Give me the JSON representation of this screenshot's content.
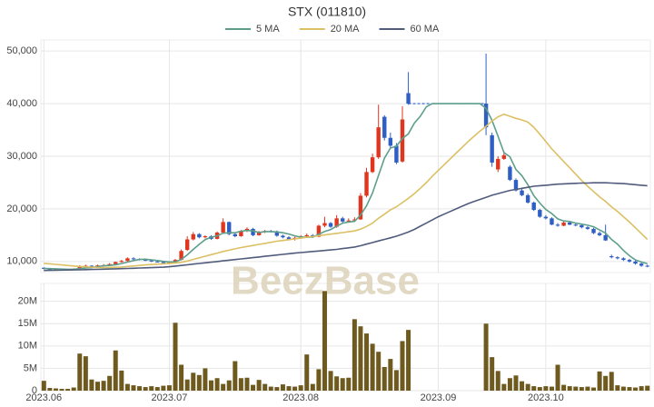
{
  "chart_data": [
    {
      "type": "candlestick",
      "title": "STX (011810)",
      "watermark": "BeezBase",
      "up_color": "#e0361f",
      "down_color": "#2f5fc4",
      "grid": true,
      "ylim": [
        7900,
        52100
      ],
      "yticks": [
        {
          "value": 10000,
          "label": "10,000"
        },
        {
          "value": 20000,
          "label": "20,000"
        },
        {
          "value": 30000,
          "label": "30,000"
        },
        {
          "value": 40000,
          "label": "40,000"
        },
        {
          "value": 50000,
          "label": "50,000"
        }
      ],
      "open": [
        8800,
        8600,
        8500,
        8550,
        8500,
        8450,
        8600,
        9100,
        9200,
        9000,
        9250,
        9300,
        9500,
        9900,
        10100,
        10600,
        10500,
        10300,
        10200,
        10000,
        9900,
        9700,
        9800,
        10300,
        12200,
        14200,
        15200,
        14600,
        14800,
        14300,
        15500,
        17500,
        15200,
        14800,
        15800,
        16200,
        15000,
        15600,
        15800,
        15700,
        14900,
        14600,
        14200,
        14500,
        14800,
        15000,
        14700,
        16800,
        17300,
        16600,
        18200,
        17600,
        17800,
        18000,
        22500,
        27000,
        29800,
        37500,
        33500,
        32000,
        29000,
        42000,
        null,
        null,
        null,
        null,
        null,
        null,
        null,
        null,
        null,
        null,
        null,
        null,
        40000,
        34000,
        27500,
        29500,
        28000,
        25500,
        23500,
        22600,
        21200,
        19800,
        18500,
        18200,
        17000,
        16800,
        17400,
        17000,
        16900,
        16500,
        16200,
        15400,
        15000,
        11000,
        10800,
        10600,
        10300,
        10000,
        9600,
        9200
      ],
      "high": [
        8900,
        8700,
        8650,
        8650,
        8600,
        8700,
        9300,
        9400,
        9300,
        9400,
        9500,
        9700,
        10000,
        10300,
        10800,
        10800,
        10600,
        10500,
        10300,
        10100,
        10000,
        9900,
        10500,
        12300,
        14800,
        15600,
        15400,
        15000,
        15000,
        15700,
        18200,
        17600,
        15500,
        16000,
        16500,
        16400,
        15800,
        16000,
        16000,
        15900,
        15100,
        14800,
        14700,
        15000,
        15300,
        15200,
        17000,
        18500,
        17500,
        18800,
        18500,
        18200,
        18400,
        23000,
        27800,
        30500,
        39800,
        37800,
        34500,
        32500,
        39500,
        46000,
        null,
        null,
        null,
        null,
        null,
        null,
        null,
        null,
        null,
        null,
        null,
        null,
        49500,
        34500,
        30000,
        30800,
        28300,
        25800,
        23800,
        22900,
        21400,
        20000,
        18800,
        18400,
        17300,
        17700,
        17600,
        17300,
        17100,
        16700,
        16400,
        15700,
        17000,
        11300,
        11000,
        10800,
        10500,
        10200,
        9800,
        9400
      ],
      "low": [
        8500,
        8400,
        8400,
        8400,
        8350,
        8400,
        8500,
        9000,
        8900,
        8950,
        9150,
        9200,
        9400,
        9800,
        10000,
        10300,
        10200,
        10100,
        9900,
        9800,
        9600,
        9600,
        9700,
        10200,
        12000,
        14000,
        14400,
        14400,
        14100,
        14200,
        15300,
        15000,
        14600,
        14700,
        15600,
        14800,
        14900,
        15400,
        15500,
        14700,
        14400,
        14000,
        14000,
        14300,
        14600,
        14500,
        14600,
        16500,
        16400,
        16400,
        17400,
        17400,
        17500,
        17900,
        22200,
        26800,
        29500,
        33000,
        31500,
        28500,
        28800,
        39800,
        null,
        null,
        null,
        null,
        null,
        null,
        null,
        null,
        null,
        null,
        null,
        null,
        34000,
        28000,
        27000,
        29300,
        25300,
        23300,
        22400,
        21000,
        19600,
        18300,
        18000,
        16900,
        16600,
        16700,
        16900,
        16700,
        16300,
        16000,
        15200,
        14800,
        13900,
        10600,
        10400,
        10100,
        9800,
        9400,
        9000,
        8900
      ],
      "close": [
        8600,
        8500,
        8550,
        8500,
        8450,
        8600,
        9100,
        9200,
        9000,
        9250,
        9300,
        9500,
        9900,
        10100,
        10600,
        10500,
        10300,
        10200,
        10000,
        9900,
        9700,
        9800,
        10300,
        12000,
        14200,
        15200,
        14600,
        14800,
        14300,
        15500,
        17500,
        15200,
        14800,
        15800,
        16200,
        15000,
        15600,
        15800,
        15700,
        14900,
        14600,
        14200,
        14500,
        14800,
        15000,
        14700,
        16800,
        17300,
        16600,
        18200,
        17600,
        17800,
        18000,
        22500,
        27000,
        29800,
        35500,
        33500,
        32000,
        28800,
        37000,
        40000,
        null,
        null,
        null,
        null,
        null,
        null,
        null,
        null,
        null,
        null,
        null,
        null,
        35500,
        28800,
        29500,
        30200,
        25500,
        23500,
        22600,
        21200,
        19800,
        18500,
        18200,
        17000,
        16800,
        17400,
        17000,
        16900,
        16500,
        16200,
        15400,
        15000,
        14000,
        10800,
        10600,
        10300,
        10000,
        9600,
        9200,
        9100
      ],
      "series": [
        {
          "name": "5 MA",
          "color": "#5d9f8c",
          "values": [
            8700,
            8650,
            8600,
            8550,
            8520,
            8520,
            8640,
            8770,
            8870,
            9010,
            9170,
            9250,
            9390,
            9610,
            9890,
            10180,
            10380,
            10440,
            10320,
            10180,
            10020,
            9920,
            9940,
            10400,
            11260,
            12300,
            13260,
            14160,
            14620,
            14880,
            15380,
            15460,
            15460,
            15760,
            15900,
            15800,
            15520,
            15680,
            15680,
            15620,
            15460,
            15220,
            14880,
            14640,
            14620,
            14640,
            15160,
            15720,
            16080,
            16720,
            17300,
            17500,
            17640,
            18820,
            20580,
            23000,
            26360,
            29660,
            31560,
            31920,
            33360,
            34260,
            36300,
            37600,
            39400,
            40000,
            40000,
            40000,
            40000,
            40000,
            40000,
            40000,
            40000,
            40000,
            39100,
            36800,
            33800,
            30700,
            29900,
            27500,
            26300,
            24600,
            22500,
            21100,
            19900,
            19100,
            18100,
            17700,
            17600,
            17300,
            17100,
            16900,
            16600,
            16000,
            15400,
            14200,
            13300,
            12100,
            11100,
            10300,
            9900,
            9600
          ]
        },
        {
          "name": "20 MA",
          "color": "#dcc064",
          "values": [
            9650,
            9550,
            9450,
            9350,
            9250,
            9150,
            9050,
            8980,
            8920,
            8860,
            8850,
            8860,
            8900,
            8960,
            9050,
            9150,
            9250,
            9350,
            9420,
            9490,
            9550,
            9620,
            9700,
            9850,
            10100,
            10400,
            10700,
            11000,
            11300,
            11600,
            11900,
            12150,
            12400,
            12650,
            12850,
            13050,
            13250,
            13450,
            13650,
            13850,
            14000,
            14150,
            14300,
            14450,
            14600,
            14750,
            14900,
            15050,
            15200,
            15350,
            15500,
            15650,
            15800,
            16150,
            16650,
            17300,
            18200,
            19000,
            19800,
            20400,
            21200,
            22000,
            22900,
            23900,
            25000,
            26200,
            27300,
            28400,
            29500,
            30600,
            31700,
            32800,
            33800,
            34800,
            35700,
            36700,
            37500,
            38000,
            37600,
            37200,
            36900,
            36500,
            35500,
            34200,
            32800,
            31400,
            30200,
            29000,
            27800,
            26600,
            25400,
            24300,
            23300,
            22300,
            21400,
            20400,
            19500,
            18500,
            17500,
            16400,
            15300,
            14200
          ]
        },
        {
          "name": "60 MA",
          "color": "#515c7c",
          "values": [
            8300,
            8320,
            8340,
            8360,
            8380,
            8400,
            8420,
            8450,
            8480,
            8510,
            8540,
            8570,
            8600,
            8640,
            8680,
            8720,
            8760,
            8800,
            8840,
            8880,
            8920,
            9000,
            9120,
            9250,
            9370,
            9500,
            9620,
            9740,
            9870,
            9990,
            10120,
            10240,
            10370,
            10490,
            10610,
            10740,
            10860,
            10990,
            11110,
            11230,
            11360,
            11480,
            11600,
            11700,
            11800,
            11900,
            12000,
            12100,
            12200,
            12300,
            12450,
            12600,
            12750,
            13000,
            13300,
            13600,
            13900,
            14200,
            14500,
            14800,
            15200,
            15600,
            16100,
            16700,
            17300,
            17900,
            18500,
            19000,
            19500,
            20000,
            20500,
            21000,
            21400,
            21800,
            22200,
            22600,
            22900,
            23200,
            23500,
            23700,
            23900,
            24100,
            24300,
            24400,
            24500,
            24600,
            24700,
            24750,
            24800,
            24850,
            24900,
            24900,
            24950,
            24950,
            24950,
            24900,
            24850,
            24800,
            24700,
            24600,
            24500,
            24400
          ]
        }
      ]
    },
    {
      "type": "bar",
      "color": "#6e5a1f",
      "grid": true,
      "categories": [
        "2023.06",
        null,
        null,
        null,
        null,
        null,
        null,
        null,
        null,
        null,
        null,
        null,
        null,
        null,
        null,
        null,
        null,
        null,
        null,
        null,
        null,
        "2023.07",
        null,
        null,
        null,
        null,
        null,
        null,
        null,
        null,
        null,
        null,
        null,
        null,
        null,
        null,
        null,
        null,
        null,
        null,
        null,
        null,
        null,
        "2023.08",
        null,
        null,
        null,
        null,
        null,
        null,
        null,
        null,
        null,
        null,
        null,
        null,
        null,
        null,
        null,
        null,
        null,
        null,
        null,
        null,
        null,
        null,
        "2023.09",
        null,
        null,
        null,
        null,
        null,
        null,
        null,
        null,
        null,
        null,
        null,
        null,
        null,
        null,
        null,
        null,
        null,
        "2023.10",
        null,
        null,
        null,
        null,
        null,
        null,
        null,
        null,
        null,
        null,
        null,
        null,
        null,
        null,
        null,
        null,
        null
      ],
      "values": [
        2200000,
        600000,
        500000,
        400000,
        400000,
        700000,
        8300000,
        7700000,
        2500000,
        2000000,
        2200000,
        3300000,
        9000000,
        4500000,
        1500000,
        1200000,
        1000000,
        800000,
        1000000,
        800000,
        1100000,
        1200000,
        15200000,
        5800000,
        2500000,
        4000000,
        3500000,
        5000000,
        2300000,
        2800000,
        1500000,
        2300000,
        6600000,
        2800000,
        2900000,
        1300000,
        2400000,
        1500000,
        900000,
        800000,
        1400000,
        1000000,
        900000,
        1200000,
        8100000,
        1500000,
        4800000,
        22300000,
        4400000,
        3200000,
        2800000,
        2900000,
        16000000,
        14400000,
        12800000,
        10500000,
        8700000,
        5300000,
        7100000,
        4600000,
        11100000,
        13600000,
        null,
        null,
        null,
        null,
        null,
        null,
        null,
        null,
        null,
        null,
        null,
        null,
        15000000,
        7500000,
        4400000,
        1500000,
        2800000,
        3400000,
        2100000,
        1500000,
        1000000,
        800000,
        1000000,
        900000,
        5800000,
        1300000,
        1000000,
        900000,
        800000,
        900000,
        700000,
        4300000,
        3300000,
        4200000,
        1200000,
        900000,
        800000,
        700000,
        1000000,
        1100000
      ],
      "ylim": [
        0,
        24000000
      ],
      "yticks": [
        0,
        {
          "value": 5000000,
          "label": "5M"
        },
        {
          "value": 10000000,
          "label": "10M"
        },
        {
          "value": 15000000,
          "label": "15M"
        },
        {
          "value": 20000000,
          "label": "20M"
        }
      ]
    }
  ]
}
